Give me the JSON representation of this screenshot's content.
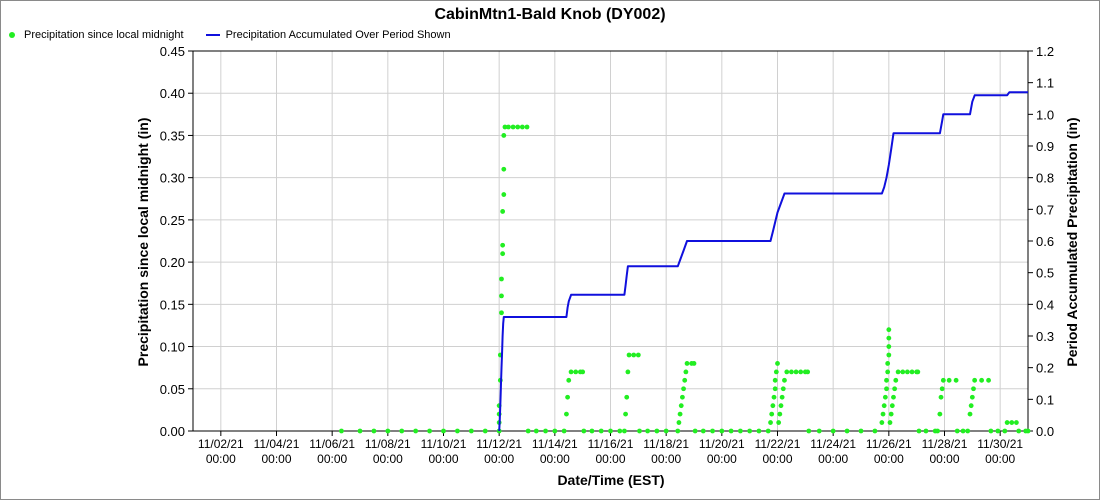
{
  "chart_data": {
    "type": "scatter+line",
    "title": "CabinMtn1-Bald Knob (DY002)",
    "xlabel": "Date/Time (EST)",
    "ylabel_left": "Precipitation since local midnight (in)",
    "ylabel_right": "Period Accumulated Precipitation (in)",
    "x_tick_dates": [
      "11/02/21",
      "11/04/21",
      "11/06/21",
      "11/08/21",
      "11/10/21",
      "11/12/21",
      "11/14/21",
      "11/16/21",
      "11/18/21",
      "11/20/21",
      "11/22/21",
      "11/24/21",
      "11/26/21",
      "11/28/21",
      "11/30/21"
    ],
    "x_tick_time": "00:00",
    "xlim": [
      "2021-11-01 00:00",
      "2021-12-01 00:00"
    ],
    "ylim_left": [
      0,
      0.45
    ],
    "yticks_left": [
      "0.00",
      "0.05",
      "0.10",
      "0.15",
      "0.20",
      "0.25",
      "0.30",
      "0.35",
      "0.40",
      "0.45"
    ],
    "ylim_right": [
      0,
      1.2
    ],
    "yticks_right": [
      "0.0",
      "0.1",
      "0.2",
      "0.3",
      "0.4",
      "0.5",
      "0.6",
      "0.7",
      "0.8",
      "0.9",
      "1.0",
      "1.1",
      "1.2"
    ],
    "grid": true,
    "legend_position": "top-left",
    "series": [
      {
        "name": "Precipitation since local midnight",
        "axis": "left",
        "style": "points",
        "color": "#22ee22",
        "points": [
          [
            "2021-11-06 08:00",
            0
          ],
          [
            "2021-11-07 00:00",
            0
          ],
          [
            "2021-11-07 12:00",
            0
          ],
          [
            "2021-11-08 00:00",
            0
          ],
          [
            "2021-11-08 12:00",
            0
          ],
          [
            "2021-11-09 00:00",
            0
          ],
          [
            "2021-11-09 12:00",
            0
          ],
          [
            "2021-11-10 00:00",
            0
          ],
          [
            "2021-11-10 12:00",
            0
          ],
          [
            "2021-11-11 00:00",
            0
          ],
          [
            "2021-11-11 12:00",
            0
          ],
          [
            "2021-11-12 00:00",
            0
          ],
          [
            "2021-11-12 00:00",
            0.01
          ],
          [
            "2021-11-12 00:00",
            0.02
          ],
          [
            "2021-11-12 00:00",
            0.03
          ],
          [
            "2021-11-12 01:00",
            0.06
          ],
          [
            "2021-11-12 01:00",
            0.09
          ],
          [
            "2021-11-12 02:00",
            0.14
          ],
          [
            "2021-11-12 02:00",
            0.16
          ],
          [
            "2021-11-12 02:00",
            0.18
          ],
          [
            "2021-11-12 03:00",
            0.21
          ],
          [
            "2021-11-12 03:00",
            0.22
          ],
          [
            "2021-11-12 03:00",
            0.26
          ],
          [
            "2021-11-12 04:00",
            0.28
          ],
          [
            "2021-11-12 04:00",
            0.31
          ],
          [
            "2021-11-12 04:00",
            0.35
          ],
          [
            "2021-11-12 05:00",
            0.36
          ],
          [
            "2021-11-12 08:00",
            0.36
          ],
          [
            "2021-11-12 12:00",
            0.36
          ],
          [
            "2021-11-12 16:00",
            0.36
          ],
          [
            "2021-11-12 20:00",
            0.36
          ],
          [
            "2021-11-13 00:00",
            0.36
          ],
          [
            "2021-11-13 01:00",
            0
          ],
          [
            "2021-11-13 08:00",
            0
          ],
          [
            "2021-11-13 16:00",
            0
          ],
          [
            "2021-11-14 00:00",
            0
          ],
          [
            "2021-11-14 08:00",
            0
          ],
          [
            "2021-11-14 10:00",
            0.02
          ],
          [
            "2021-11-14 11:00",
            0.04
          ],
          [
            "2021-11-14 12:00",
            0.06
          ],
          [
            "2021-11-14 14:00",
            0.07
          ],
          [
            "2021-11-14 18:00",
            0.07
          ],
          [
            "2021-11-14 22:00",
            0.07
          ],
          [
            "2021-11-15 00:00",
            0.07
          ],
          [
            "2021-11-15 01:00",
            0
          ],
          [
            "2021-11-15 08:00",
            0
          ],
          [
            "2021-11-15 16:00",
            0
          ],
          [
            "2021-11-16 00:00",
            0
          ],
          [
            "2021-11-16 08:00",
            0
          ],
          [
            "2021-11-16 12:00",
            0
          ],
          [
            "2021-11-16 13:00",
            0.02
          ],
          [
            "2021-11-16 14:00",
            0.04
          ],
          [
            "2021-11-16 15:00",
            0.07
          ],
          [
            "2021-11-16 16:00",
            0.09
          ],
          [
            "2021-11-16 20:00",
            0.09
          ],
          [
            "2021-11-17 00:00",
            0.09
          ],
          [
            "2021-11-17 01:00",
            0
          ],
          [
            "2021-11-17 08:00",
            0
          ],
          [
            "2021-11-17 16:00",
            0
          ],
          [
            "2021-11-18 00:00",
            0
          ],
          [
            "2021-11-18 10:00",
            0
          ],
          [
            "2021-11-18 11:00",
            0.01
          ],
          [
            "2021-11-18 12:00",
            0.02
          ],
          [
            "2021-11-18 13:00",
            0.03
          ],
          [
            "2021-11-18 14:00",
            0.04
          ],
          [
            "2021-11-18 15:00",
            0.05
          ],
          [
            "2021-11-18 16:00",
            0.06
          ],
          [
            "2021-11-18 17:00",
            0.07
          ],
          [
            "2021-11-18 18:00",
            0.08
          ],
          [
            "2021-11-18 22:00",
            0.08
          ],
          [
            "2021-11-19 00:00",
            0.08
          ],
          [
            "2021-11-19 01:00",
            0
          ],
          [
            "2021-11-19 08:00",
            0
          ],
          [
            "2021-11-19 16:00",
            0
          ],
          [
            "2021-11-20 00:00",
            0
          ],
          [
            "2021-11-20 08:00",
            0
          ],
          [
            "2021-11-20 16:00",
            0
          ],
          [
            "2021-11-21 00:00",
            0
          ],
          [
            "2021-11-21 08:00",
            0
          ],
          [
            "2021-11-21 16:00",
            0
          ],
          [
            "2021-11-21 18:00",
            0.01
          ],
          [
            "2021-11-21 19:00",
            0.02
          ],
          [
            "2021-11-21 20:00",
            0.03
          ],
          [
            "2021-11-21 21:00",
            0.04
          ],
          [
            "2021-11-21 22:00",
            0.05
          ],
          [
            "2021-11-21 22:00",
            0.06
          ],
          [
            "2021-11-21 23:00",
            0.07
          ],
          [
            "2021-11-22 00:00",
            0.08
          ],
          [
            "2021-11-22 01:00",
            0.01
          ],
          [
            "2021-11-22 02:00",
            0.02
          ],
          [
            "2021-11-22 03:00",
            0.03
          ],
          [
            "2021-11-22 04:00",
            0.04
          ],
          [
            "2021-11-22 05:00",
            0.05
          ],
          [
            "2021-11-22 06:00",
            0.06
          ],
          [
            "2021-11-22 08:00",
            0.07
          ],
          [
            "2021-11-22 12:00",
            0.07
          ],
          [
            "2021-11-22 16:00",
            0.07
          ],
          [
            "2021-11-22 20:00",
            0.07
          ],
          [
            "2021-11-23 00:00",
            0.07
          ],
          [
            "2021-11-23 02:00",
            0.07
          ],
          [
            "2021-11-23 03:00",
            0
          ],
          [
            "2021-11-23 12:00",
            0
          ],
          [
            "2021-11-24 00:00",
            0
          ],
          [
            "2021-11-24 12:00",
            0
          ],
          [
            "2021-11-25 00:00",
            0
          ],
          [
            "2021-11-25 12:00",
            0
          ],
          [
            "2021-11-25 18:00",
            0.01
          ],
          [
            "2021-11-25 19:00",
            0.02
          ],
          [
            "2021-11-25 20:00",
            0.03
          ],
          [
            "2021-11-25 21:00",
            0.04
          ],
          [
            "2021-11-25 22:00",
            0.05
          ],
          [
            "2021-11-25 22:00",
            0.06
          ],
          [
            "2021-11-25 23:00",
            0.07
          ],
          [
            "2021-11-25 23:00",
            0.08
          ],
          [
            "2021-11-26 00:00",
            0.09
          ],
          [
            "2021-11-26 00:00",
            0.1
          ],
          [
            "2021-11-26 00:00",
            0.11
          ],
          [
            "2021-11-26 00:00",
            0.12
          ],
          [
            "2021-11-26 01:00",
            0.01
          ],
          [
            "2021-11-26 02:00",
            0.02
          ],
          [
            "2021-11-26 03:00",
            0.03
          ],
          [
            "2021-11-26 04:00",
            0.04
          ],
          [
            "2021-11-26 05:00",
            0.05
          ],
          [
            "2021-11-26 06:00",
            0.06
          ],
          [
            "2021-11-26 08:00",
            0.07
          ],
          [
            "2021-11-26 12:00",
            0.07
          ],
          [
            "2021-11-26 16:00",
            0.07
          ],
          [
            "2021-11-26 20:00",
            0.07
          ],
          [
            "2021-11-27 00:00",
            0.07
          ],
          [
            "2021-11-27 01:00",
            0.07
          ],
          [
            "2021-11-27 02:00",
            0
          ],
          [
            "2021-11-27 08:00",
            0
          ],
          [
            "2021-11-27 16:00",
            0
          ],
          [
            "2021-11-27 18:00",
            0
          ],
          [
            "2021-11-27 20:00",
            0.02
          ],
          [
            "2021-11-27 21:00",
            0.04
          ],
          [
            "2021-11-27 22:00",
            0.05
          ],
          [
            "2021-11-27 23:00",
            0.06
          ],
          [
            "2021-11-28 04:00",
            0.06
          ],
          [
            "2021-11-28 10:00",
            0.06
          ],
          [
            "2021-11-28 11:00",
            0
          ],
          [
            "2021-11-28 16:00",
            0
          ],
          [
            "2021-11-28 20:00",
            0
          ],
          [
            "2021-11-28 22:00",
            0.02
          ],
          [
            "2021-11-28 23:00",
            0.03
          ],
          [
            "2021-11-29 00:00",
            0.04
          ],
          [
            "2021-11-29 01:00",
            0.05
          ],
          [
            "2021-11-29 02:00",
            0.06
          ],
          [
            "2021-11-29 08:00",
            0.06
          ],
          [
            "2021-11-29 14:00",
            0.06
          ],
          [
            "2021-11-29 16:00",
            0
          ],
          [
            "2021-11-29 22:00",
            0
          ],
          [
            "2021-11-30 04:00",
            0
          ],
          [
            "2021-11-30 06:00",
            0.01
          ],
          [
            "2021-11-30 10:00",
            0.01
          ],
          [
            "2021-11-30 14:00",
            0.01
          ],
          [
            "2021-11-30 16:00",
            0
          ],
          [
            "2021-11-30 22:00",
            0
          ],
          [
            "2021-12-01 00:00",
            0
          ]
        ]
      },
      {
        "name": "Precipitation Accumulated Over Period Shown",
        "axis": "right",
        "style": "line",
        "color": "#1010dd",
        "points": [
          [
            "2021-11-12 00:00",
            0.0
          ],
          [
            "2021-11-12 00:30",
            0.03
          ],
          [
            "2021-11-12 01:00",
            0.08
          ],
          [
            "2021-11-12 01:30",
            0.14
          ],
          [
            "2021-11-12 02:00",
            0.2
          ],
          [
            "2021-11-12 02:30",
            0.25
          ],
          [
            "2021-11-12 03:00",
            0.3
          ],
          [
            "2021-11-12 03:30",
            0.34
          ],
          [
            "2021-11-12 04:00",
            0.36
          ],
          [
            "2021-11-14 10:00",
            0.36
          ],
          [
            "2021-11-14 11:00",
            0.39
          ],
          [
            "2021-11-14 12:00",
            0.41
          ],
          [
            "2021-11-14 14:00",
            0.43
          ],
          [
            "2021-11-16 12:00",
            0.43
          ],
          [
            "2021-11-16 13:00",
            0.46
          ],
          [
            "2021-11-16 14:00",
            0.49
          ],
          [
            "2021-11-16 15:00",
            0.52
          ],
          [
            "2021-11-18 10:00",
            0.52
          ],
          [
            "2021-11-18 12:00",
            0.54
          ],
          [
            "2021-11-18 15:00",
            0.57
          ],
          [
            "2021-11-18 18:00",
            0.6
          ],
          [
            "2021-11-21 18:00",
            0.6
          ],
          [
            "2021-11-21 20:00",
            0.63
          ],
          [
            "2021-11-21 22:00",
            0.66
          ],
          [
            "2021-11-22 00:00",
            0.69
          ],
          [
            "2021-11-22 03:00",
            0.72
          ],
          [
            "2021-11-22 06:00",
            0.75
          ],
          [
            "2021-11-25 18:00",
            0.75
          ],
          [
            "2021-11-25 20:00",
            0.77
          ],
          [
            "2021-11-25 22:00",
            0.8
          ],
          [
            "2021-11-26 00:00",
            0.84
          ],
          [
            "2021-11-26 02:00",
            0.89
          ],
          [
            "2021-11-26 04:00",
            0.94
          ],
          [
            "2021-11-27 20:00",
            0.94
          ],
          [
            "2021-11-27 22:00",
            0.98
          ],
          [
            "2021-11-27 23:00",
            1.0
          ],
          [
            "2021-11-28 22:00",
            1.0
          ],
          [
            "2021-11-29 00:00",
            1.04
          ],
          [
            "2021-11-29 02:00",
            1.06
          ],
          [
            "2021-11-30 06:00",
            1.06
          ],
          [
            "2021-11-30 08:00",
            1.07
          ],
          [
            "2021-12-01 00:00",
            1.07
          ]
        ]
      }
    ]
  }
}
